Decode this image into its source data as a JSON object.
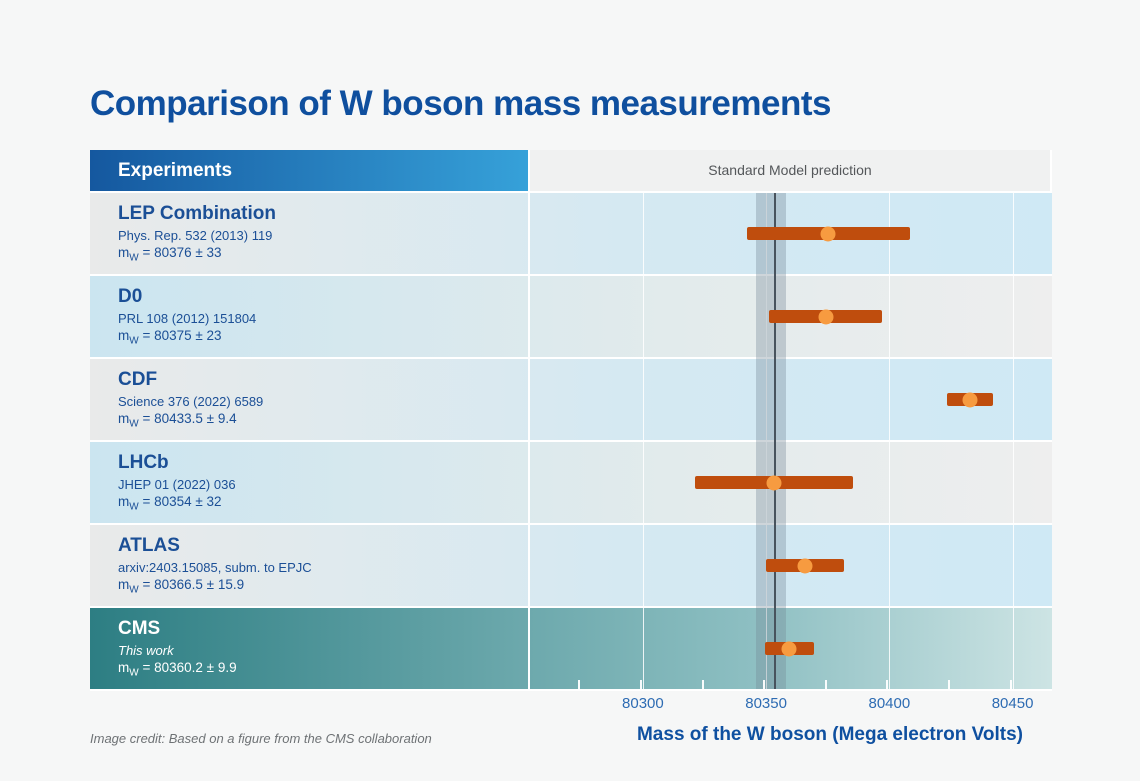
{
  "page": {
    "title": "Comparison of W boson mass measurements",
    "credit": "Image credit: Based on a figure from the CMS collaboration"
  },
  "table": {
    "experiments_header": "Experiments",
    "sm_label": "Standard Model prediction"
  },
  "labels": {
    "mass_prefix": "m",
    "mass_sub": "W"
  },
  "experiments": [
    {
      "name": "LEP Combination",
      "reference": "Phys. Rep. 532 (2013) 119",
      "mass_value": "= 80376 ± 33"
    },
    {
      "name": "D0",
      "reference": "PRL 108 (2012) 151804",
      "mass_value": "= 80375 ± 23"
    },
    {
      "name": "CDF",
      "reference": "Science 376 (2022) 6589",
      "mass_value": "= 80433.5 ± 9.4"
    },
    {
      "name": "LHCb",
      "reference": "JHEP 01 (2022) 036",
      "mass_value": "= 80354 ± 32"
    },
    {
      "name": "ATLAS",
      "reference": "arxiv:2403.15085, subm. to EPJC",
      "mass_value": "= 80366.5 ± 15.9"
    },
    {
      "name": "CMS",
      "reference": "This work",
      "mass_value": "= 80360.2 ± 9.9"
    }
  ],
  "chart_data": {
    "type": "scatter",
    "subtype": "horizontal-error-bars",
    "title": "Comparison of W boson mass measurements",
    "xlabel": "Mass of the W boson (Mega electron Volts)",
    "xlim": [
      80255,
      80466
    ],
    "x_ticks": [
      80300,
      80350,
      80400,
      80450
    ],
    "x_minor_ticks": [
      80275,
      80300,
      80325,
      80350,
      80375,
      80400,
      80425,
      80450
    ],
    "grid": true,
    "sm_band": {
      "label": "Standard Model prediction",
      "center": 80353.5,
      "min": 80346,
      "max": 80358
    },
    "series": [
      {
        "name": "LEP Combination",
        "reference": "Phys. Rep. 532 (2013) 119",
        "value": 80376,
        "error": 33
      },
      {
        "name": "D0",
        "reference": "PRL 108 (2012) 151804",
        "value": 80375,
        "error": 23
      },
      {
        "name": "CDF",
        "reference": "Science 376 (2022) 6589",
        "value": 80433.5,
        "error": 9.4
      },
      {
        "name": "LHCb",
        "reference": "JHEP 01 (2022) 036",
        "value": 80354,
        "error": 32
      },
      {
        "name": "ATLAS",
        "reference": "arxiv:2403.15085, subm. to EPJC",
        "value": 80366.5,
        "error": 15.9
      },
      {
        "name": "CMS",
        "reference": "This work",
        "value": 80360.2,
        "error": 9.9
      }
    ],
    "colors": {
      "bar": "#bf4d0d",
      "dot": "#f79b40",
      "band": "rgba(116,134,148,0.35)",
      "sm_line": "#48535d",
      "title_blue": "#0f4f9e",
      "row_text_blue": "#1b4f96",
      "header_gradient": [
        "#15589f",
        "#36a1d9"
      ],
      "cms_row_gradient": [
        "#2d7e83",
        "#cde4e4"
      ]
    }
  }
}
